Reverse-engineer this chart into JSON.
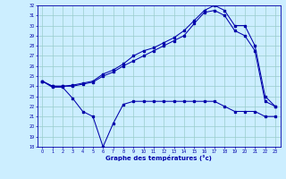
{
  "xlabel": "Graphe des températures (°c)",
  "bg_color": "#cceeff",
  "line_color": "#0000aa",
  "grid_color": "#99cccc",
  "ylim": [
    18,
    32
  ],
  "xlim": [
    -0.5,
    23.5
  ],
  "yticks": [
    18,
    19,
    20,
    21,
    22,
    23,
    24,
    25,
    26,
    27,
    28,
    29,
    30,
    31,
    32
  ],
  "xticks": [
    0,
    1,
    2,
    3,
    4,
    5,
    6,
    7,
    8,
    9,
    10,
    11,
    12,
    13,
    14,
    15,
    16,
    17,
    18,
    19,
    20,
    21,
    22,
    23
  ],
  "line1_x": [
    0,
    1,
    2,
    3,
    4,
    5,
    6,
    7,
    8,
    9,
    10,
    11,
    12,
    13,
    14,
    15,
    16,
    17,
    18,
    19,
    20,
    21,
    22,
    23
  ],
  "line1_y": [
    24.5,
    24.0,
    24.0,
    24.1,
    24.3,
    24.5,
    25.2,
    25.6,
    26.2,
    27.0,
    27.5,
    27.8,
    28.3,
    28.8,
    29.5,
    30.5,
    31.5,
    32.0,
    31.5,
    30.0,
    30.0,
    28.0,
    23.0,
    22.0
  ],
  "line2_x": [
    0,
    1,
    2,
    3,
    4,
    5,
    6,
    7,
    8,
    9,
    10,
    11,
    12,
    13,
    14,
    15,
    16,
    17,
    18,
    19,
    20,
    21,
    22,
    23
  ],
  "line2_y": [
    24.5,
    24.0,
    24.0,
    24.0,
    24.2,
    24.4,
    25.0,
    25.4,
    26.0,
    26.5,
    27.0,
    27.5,
    28.0,
    28.5,
    29.0,
    30.2,
    31.3,
    31.5,
    31.0,
    29.5,
    29.0,
    27.5,
    22.5,
    22.0
  ],
  "line3_x": [
    0,
    1,
    2,
    3,
    4,
    5,
    6,
    7,
    8,
    9,
    10,
    11,
    12,
    13,
    14,
    15,
    16,
    17,
    18,
    19,
    20,
    21,
    22,
    23
  ],
  "line3_y": [
    24.5,
    23.9,
    23.9,
    22.8,
    21.5,
    21.0,
    18.0,
    20.3,
    22.2,
    22.5,
    22.5,
    22.5,
    22.5,
    22.5,
    22.5,
    22.5,
    22.5,
    22.5,
    22.0,
    21.5,
    21.5,
    21.5,
    21.0,
    21.0
  ]
}
